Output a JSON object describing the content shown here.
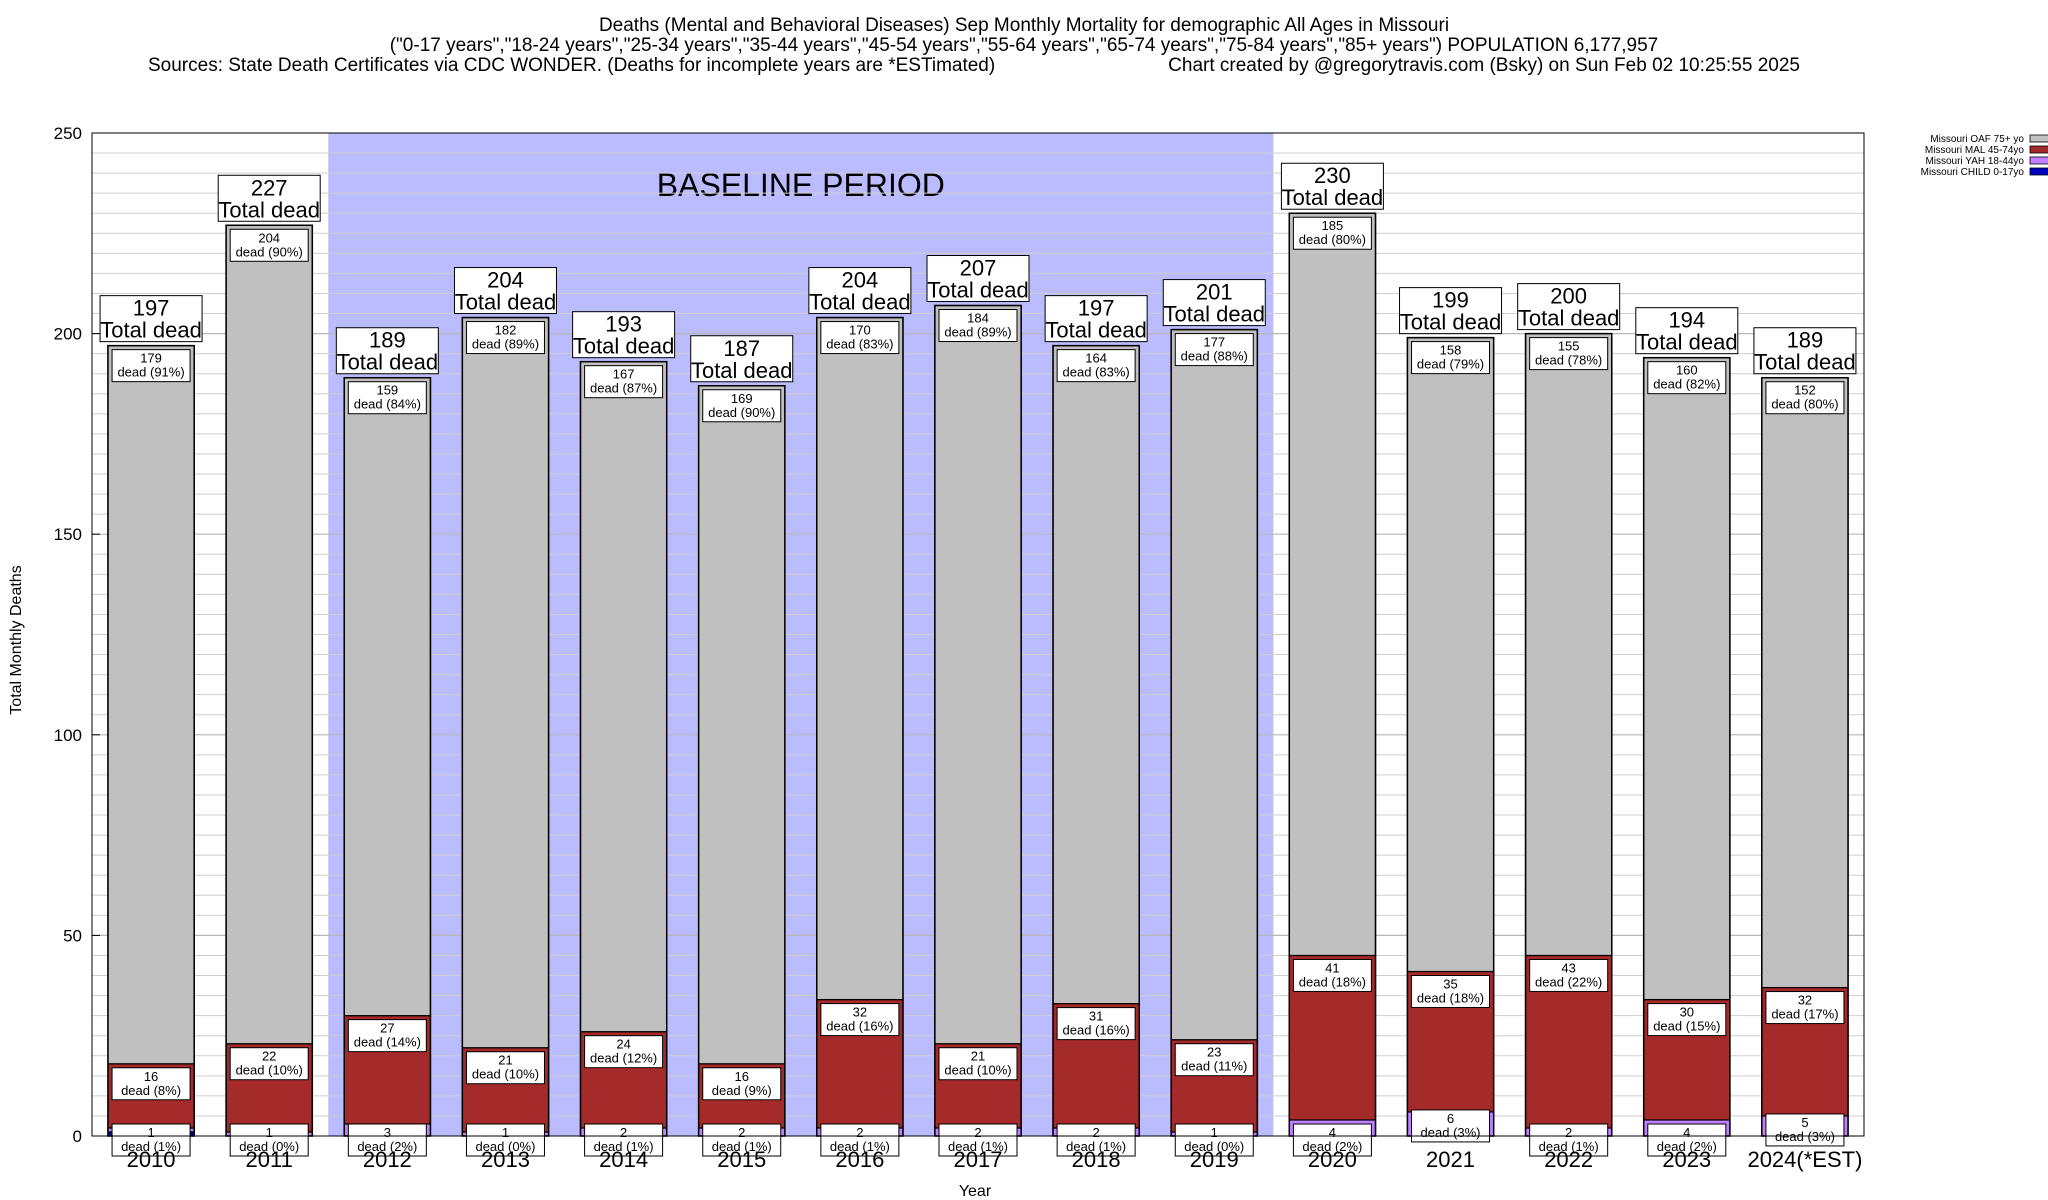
{
  "titles": {
    "line1": "Deaths (Mental and Behavioral Diseases) Sep Monthly Mortality for demographic All Ages in Missouri",
    "line2": "(\"0-17 years\",\"18-24 years\",\"25-34 years\",\"35-44 years\",\"45-54 years\",\"55-64 years\",\"65-74 years\",\"75-84 years\",\"85+ years\") POPULATION 6,177,957",
    "line3_left": "Sources: State Death Certificates via CDC WONDER. (Deaths for incomplete years are *ESTimated)",
    "line3_right": "Chart created by @gregorytravis.com (Bsky) on Sun Feb 02 10:25:55 2025"
  },
  "chart_data": {
    "type": "bar",
    "stacked": true,
    "title": "Deaths (Mental and Behavioral Diseases) Sep Monthly Mortality for demographic All Ages in Missouri",
    "xlabel": "Year",
    "ylabel": "Total Monthly Deaths",
    "ylim": [
      0,
      250
    ],
    "yticks": [
      0,
      50,
      100,
      150,
      200,
      250
    ],
    "categories": [
      "2010",
      "2011",
      "2012",
      "2013",
      "2014",
      "2015",
      "2016",
      "2017",
      "2018",
      "2019",
      "2020",
      "2021",
      "2022",
      "2023",
      "2024(*EST)"
    ],
    "totals": [
      197,
      227,
      189,
      204,
      193,
      187,
      204,
      207,
      197,
      201,
      230,
      199,
      200,
      194,
      189
    ],
    "total_label": "Total dead",
    "series": [
      {
        "name": "Missouri CHILD 0-17yo",
        "color": "#0000c0",
        "values": [
          1,
          0,
          0,
          0,
          0,
          0,
          0,
          0,
          0,
          0,
          0,
          0,
          0,
          0,
          0
        ],
        "labels": [
          "",
          "",
          "",
          "",
          "",
          "",
          "",
          "",
          "",
          "",
          "",
          "",
          "",
          "",
          ""
        ]
      },
      {
        "name": "Missouri YAH 18-44yo",
        "color": "#c080ff",
        "values": [
          1,
          1,
          3,
          1,
          2,
          2,
          2,
          2,
          2,
          1,
          4,
          6,
          2,
          4,
          5
        ],
        "labels": [
          "1\ndead (1%)",
          "1\ndead (0%)",
          "3\ndead (2%)",
          "1\ndead (0%)",
          "2\ndead (1%)",
          "2\ndead (1%)",
          "2\ndead (1%)",
          "2\ndead (1%)",
          "2\ndead (1%)",
          "1\ndead (0%)",
          "4\ndead (2%)",
          "6\ndead (3%)",
          "2\ndead (1%)",
          "4\ndead (2%)",
          "5\ndead (3%)"
        ]
      },
      {
        "name": "Missouri MAL 45-74yo",
        "color": "#a52a2a",
        "values": [
          16,
          22,
          27,
          21,
          24,
          16,
          32,
          21,
          31,
          23,
          41,
          35,
          43,
          30,
          32
        ],
        "labels": [
          "16\ndead (8%)",
          "22\ndead (10%)",
          "27\ndead (14%)",
          "21\ndead (10%)",
          "24\ndead (12%)",
          "16\ndead (9%)",
          "32\ndead (16%)",
          "21\ndead (10%)",
          "31\ndead (16%)",
          "23\ndead (11%)",
          "41\ndead (18%)",
          "35\ndead (18%)",
          "43\ndead (22%)",
          "30\ndead (15%)",
          "32\ndead (17%)"
        ]
      },
      {
        "name": "Missouri OAF 75+ yo",
        "color": "#c0c0c0",
        "values": [
          179,
          204,
          159,
          182,
          167,
          169,
          170,
          184,
          164,
          177,
          185,
          158,
          155,
          160,
          152
        ],
        "labels": [
          "179\ndead (91%)",
          "204\ndead (90%)",
          "159\ndead (84%)",
          "182\ndead (89%)",
          "167\ndead (87%)",
          "169\ndead (90%)",
          "170\ndead (83%)",
          "184\ndead (89%)",
          "164\ndead (83%)",
          "177\ndead (88%)",
          "185\ndead (80%)",
          "158\ndead (79%)",
          "155\ndead (78%)",
          "160\ndead (82%)",
          "152\ndead (80%)"
        ]
      }
    ],
    "legend": [
      {
        "label": "Missouri OAF 75+ yo",
        "color": "#c0c0c0"
      },
      {
        "label": "Missouri MAL 45-74yo",
        "color": "#a52a2a"
      },
      {
        "label": "Missouri YAH 18-44yo",
        "color": "#c080ff"
      },
      {
        "label": "Missouri CHILD 0-17yo",
        "color": "#0000c0"
      }
    ],
    "legend_position": "top-right",
    "baseline_band": {
      "label": "BASELINE PERIOD",
      "from": "2012",
      "to": "2019",
      "color": "#bbbbff"
    },
    "grid": true
  }
}
